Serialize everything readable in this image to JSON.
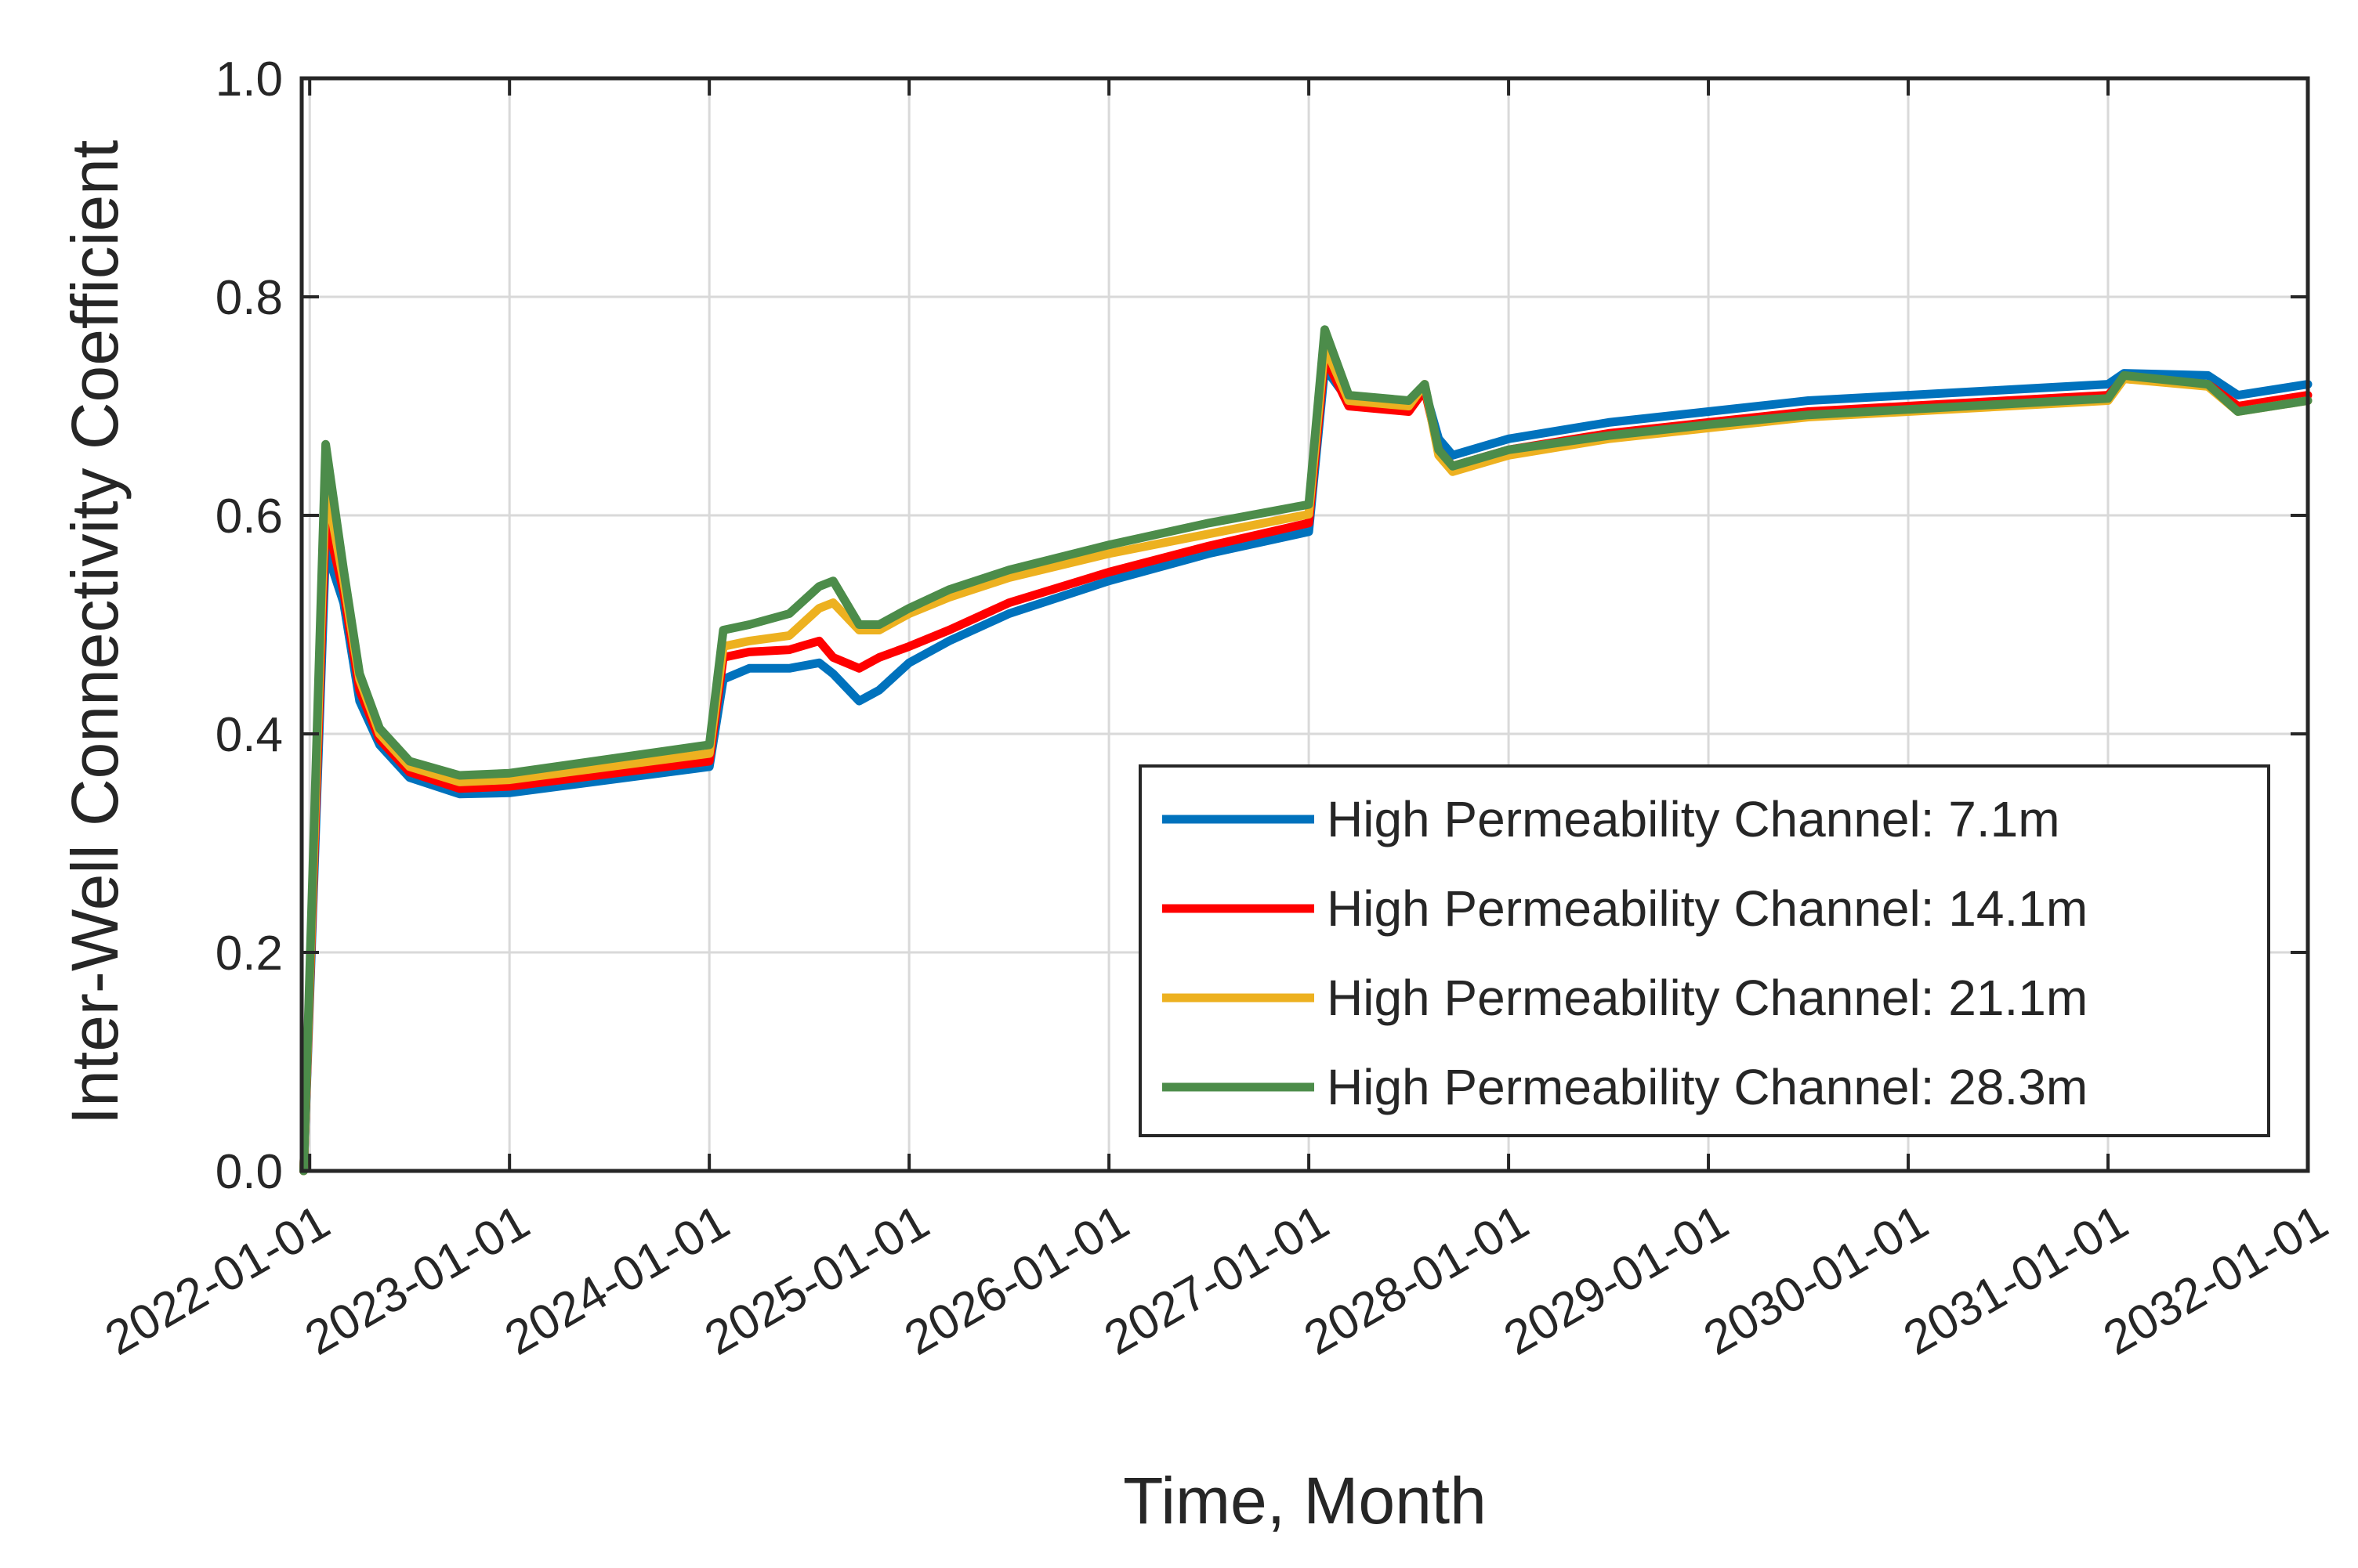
{
  "chart_data": {
    "type": "line",
    "title": "",
    "xlabel": "Time, Month",
    "ylabel": "Inter-Well Connectivity Coefficient",
    "x_units": "years since 2022-01-01",
    "xlim": [
      -0.04,
      10
    ],
    "ylim": [
      0,
      1
    ],
    "y_ticks": [
      0,
      0.2,
      0.4,
      0.6,
      0.8,
      1.0
    ],
    "y_tick_labels": [
      "0.0",
      "0.2",
      "0.4",
      "0.6",
      "0.8",
      "1.0"
    ],
    "x_ticks": [
      0,
      1,
      2,
      3,
      4,
      5,
      6,
      7,
      8,
      9,
      10
    ],
    "x_tick_labels": [
      "2022-01-01",
      "2023-01-01",
      "2024-01-01",
      "2025-01-01",
      "2026-01-01",
      "2027-01-01",
      "2028-01-01",
      "2029-01-01",
      "2030-01-01",
      "2031-01-01",
      "2032-01-01"
    ],
    "grid": true,
    "legend_position": "bottom-right",
    "series": [
      {
        "name": "High Permeability Channel: 7.1m",
        "color": "#0072BD",
        "x": [
          -0.03,
          0.08,
          0.17,
          0.25,
          0.35,
          0.5,
          0.75,
          1.0,
          2.0,
          2.07,
          2.2,
          2.4,
          2.55,
          2.62,
          2.75,
          2.85,
          3.0,
          3.2,
          3.5,
          4.0,
          4.5,
          5.0,
          5.08,
          5.2,
          5.5,
          5.58,
          5.65,
          5.72,
          6.0,
          6.5,
          7.0,
          7.5,
          8.0,
          8.5,
          9.0,
          9.08,
          9.5,
          9.65,
          10.0
        ],
        "y": [
          0.0,
          0.57,
          0.52,
          0.43,
          0.39,
          0.36,
          0.345,
          0.346,
          0.37,
          0.45,
          0.46,
          0.46,
          0.465,
          0.455,
          0.43,
          0.44,
          0.465,
          0.485,
          0.51,
          0.54,
          0.565,
          0.585,
          0.735,
          0.705,
          0.7,
          0.715,
          0.67,
          0.655,
          0.67,
          0.685,
          0.695,
          0.705,
          0.71,
          0.715,
          0.72,
          0.73,
          0.728,
          0.71,
          0.72
        ]
      },
      {
        "name": "High Permeability Channel: 14.1m",
        "color": "#FF0000",
        "x": [
          -0.03,
          0.08,
          0.17,
          0.25,
          0.35,
          0.5,
          0.75,
          1.0,
          2.0,
          2.07,
          2.2,
          2.4,
          2.55,
          2.62,
          2.75,
          2.85,
          3.0,
          3.2,
          3.5,
          4.0,
          4.5,
          5.0,
          5.08,
          5.2,
          5.5,
          5.58,
          5.65,
          5.72,
          6.0,
          6.5,
          7.0,
          7.5,
          8.0,
          8.5,
          9.0,
          9.08,
          9.5,
          9.65,
          10.0
        ],
        "y": [
          0.0,
          0.6,
          0.53,
          0.44,
          0.395,
          0.365,
          0.35,
          0.352,
          0.375,
          0.47,
          0.475,
          0.477,
          0.485,
          0.47,
          0.46,
          0.47,
          0.48,
          0.495,
          0.52,
          0.548,
          0.572,
          0.593,
          0.745,
          0.7,
          0.695,
          0.715,
          0.66,
          0.645,
          0.66,
          0.675,
          0.685,
          0.695,
          0.7,
          0.705,
          0.71,
          0.725,
          0.72,
          0.7,
          0.71
        ]
      },
      {
        "name": "High Permeability Channel: 21.1m",
        "color": "#EDB120",
        "x": [
          -0.03,
          0.08,
          0.17,
          0.25,
          0.35,
          0.5,
          0.75,
          1.0,
          2.0,
          2.07,
          2.2,
          2.4,
          2.55,
          2.62,
          2.75,
          2.85,
          3.0,
          3.2,
          3.5,
          4.0,
          4.5,
          5.0,
          5.08,
          5.2,
          5.5,
          5.58,
          5.65,
          5.72,
          6.0,
          6.5,
          7.0,
          7.5,
          8.0,
          8.5,
          9.0,
          9.08,
          9.5,
          9.65,
          10.0
        ],
        "y": [
          0.0,
          0.63,
          0.54,
          0.45,
          0.4,
          0.37,
          0.356,
          0.358,
          0.382,
          0.48,
          0.485,
          0.49,
          0.515,
          0.52,
          0.495,
          0.495,
          0.51,
          0.525,
          0.543,
          0.565,
          0.583,
          0.601,
          0.755,
          0.705,
          0.7,
          0.72,
          0.655,
          0.64,
          0.655,
          0.67,
          0.68,
          0.69,
          0.695,
          0.7,
          0.705,
          0.725,
          0.718,
          0.695,
          0.705
        ]
      },
      {
        "name": "High Permeability Channel: 28.3m",
        "color": "#4C8C4A",
        "x": [
          -0.03,
          0.08,
          0.17,
          0.25,
          0.35,
          0.5,
          0.75,
          1.0,
          2.0,
          2.07,
          2.2,
          2.4,
          2.55,
          2.62,
          2.75,
          2.85,
          3.0,
          3.2,
          3.5,
          4.0,
          4.5,
          5.0,
          5.08,
          5.2,
          5.5,
          5.58,
          5.65,
          5.72,
          6.0,
          6.5,
          7.0,
          7.5,
          8.0,
          8.5,
          9.0,
          9.08,
          9.5,
          9.65,
          10.0
        ],
        "y": [
          0.0,
          0.665,
          0.55,
          0.455,
          0.405,
          0.375,
          0.362,
          0.364,
          0.39,
          0.495,
          0.5,
          0.51,
          0.535,
          0.54,
          0.5,
          0.5,
          0.515,
          0.532,
          0.55,
          0.573,
          0.593,
          0.61,
          0.77,
          0.71,
          0.705,
          0.72,
          0.66,
          0.645,
          0.66,
          0.673,
          0.683,
          0.692,
          0.697,
          0.702,
          0.707,
          0.728,
          0.72,
          0.695,
          0.705
        ]
      }
    ]
  }
}
